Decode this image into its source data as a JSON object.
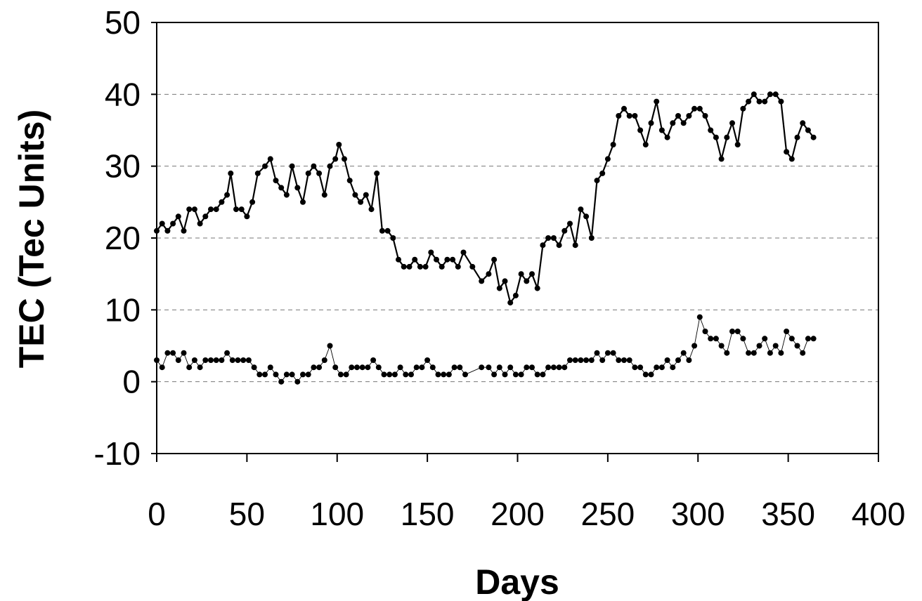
{
  "chart_data": {
    "type": "scatter",
    "xlabel": "Days",
    "ylabel": "TEC (Tec Units)",
    "xlim": [
      0,
      400
    ],
    "ylim": [
      -10,
      50
    ],
    "xticks": [
      0,
      50,
      100,
      150,
      200,
      250,
      300,
      350,
      400
    ],
    "yticks": [
      -10,
      0,
      10,
      20,
      30,
      40,
      50
    ],
    "grid": "horizontal dashed",
    "legend": "none",
    "series": [
      {
        "style": "points with thick line",
        "x": [
          0,
          3,
          6,
          9,
          12,
          15,
          18,
          21,
          24,
          27,
          30,
          33,
          36,
          39,
          41,
          44,
          47,
          50,
          53,
          56,
          60,
          63,
          66,
          69,
          72,
          75,
          78,
          81,
          84,
          87,
          90,
          93,
          96,
          99,
          101,
          104,
          107,
          110,
          113,
          116,
          119,
          122,
          125,
          128,
          131,
          134,
          137,
          140,
          143,
          146,
          149,
          152,
          155,
          158,
          161,
          164,
          167,
          170,
          175,
          180,
          184,
          187,
          190,
          193,
          196,
          199,
          202,
          205,
          208,
          211,
          214,
          217,
          220,
          223,
          226,
          229,
          232,
          235,
          238,
          241,
          244,
          247,
          250,
          253,
          256,
          259,
          262,
          265,
          268,
          271,
          274,
          277,
          280,
          283,
          286,
          289,
          292,
          295,
          298,
          301,
          304,
          307,
          310,
          313,
          316,
          319,
          322,
          325,
          328,
          331,
          334,
          337,
          340,
          343,
          346,
          349,
          352,
          355,
          358,
          361,
          364
        ],
        "y": [
          21,
          22,
          21,
          22,
          23,
          21,
          24,
          24,
          22,
          23,
          24,
          24,
          25,
          26,
          29,
          24,
          24,
          23,
          25,
          29,
          30,
          31,
          28,
          27,
          26,
          30,
          27,
          25,
          29,
          30,
          29,
          26,
          30,
          31,
          33,
          31,
          28,
          26,
          25,
          26,
          24,
          29,
          21,
          21,
          20,
          17,
          16,
          16,
          17,
          16,
          16,
          18,
          17,
          16,
          17,
          17,
          16,
          18,
          16,
          14,
          15,
          17,
          13,
          14,
          11,
          12,
          15,
          14,
          15,
          13,
          19,
          20,
          20,
          19,
          21,
          22,
          19,
          24,
          23,
          20,
          28,
          29,
          31,
          33,
          37,
          38,
          37,
          37,
          35,
          33,
          36,
          39,
          35,
          34,
          36,
          37,
          36,
          37,
          38,
          38,
          37,
          35,
          34,
          31,
          34,
          36,
          33,
          38,
          39,
          40,
          39,
          39,
          40,
          40,
          39,
          32,
          31,
          34,
          36,
          35,
          34
        ]
      },
      {
        "style": "points with thin line",
        "x": [
          0,
          3,
          6,
          9,
          12,
          15,
          18,
          21,
          24,
          27,
          30,
          33,
          36,
          39,
          42,
          45,
          48,
          51,
          54,
          57,
          60,
          63,
          66,
          69,
          72,
          75,
          78,
          81,
          84,
          87,
          90,
          93,
          96,
          99,
          102,
          105,
          108,
          111,
          114,
          117,
          120,
          123,
          126,
          129,
          132,
          135,
          138,
          141,
          144,
          147,
          150,
          153,
          156,
          159,
          162,
          165,
          168,
          171,
          180,
          184,
          187,
          190,
          193,
          196,
          199,
          202,
          205,
          208,
          211,
          214,
          217,
          220,
          223,
          226,
          229,
          232,
          235,
          238,
          241,
          244,
          247,
          250,
          253,
          256,
          259,
          262,
          265,
          268,
          271,
          274,
          277,
          280,
          283,
          286,
          289,
          292,
          295,
          298,
          301,
          304,
          307,
          310,
          313,
          316,
          319,
          322,
          325,
          328,
          331,
          334,
          337,
          340,
          343,
          346,
          349,
          352,
          355,
          358,
          361,
          364
        ],
        "y": [
          3,
          2,
          4,
          4,
          3,
          4,
          2,
          3,
          2,
          3,
          3,
          3,
          3,
          4,
          3,
          3,
          3,
          3,
          2,
          1,
          1,
          2,
          1,
          0,
          1,
          1,
          0,
          1,
          1,
          2,
          2,
          3,
          5,
          2,
          1,
          1,
          2,
          2,
          2,
          2,
          3,
          2,
          1,
          1,
          1,
          2,
          1,
          1,
          2,
          2,
          3,
          2,
          1,
          1,
          1,
          2,
          2,
          1,
          2,
          2,
          1,
          2,
          1,
          2,
          1,
          1,
          2,
          2,
          1,
          1,
          2,
          2,
          2,
          2,
          3,
          3,
          3,
          3,
          3,
          4,
          3,
          4,
          4,
          3,
          3,
          3,
          2,
          2,
          1,
          1,
          2,
          2,
          3,
          2,
          3,
          4,
          3,
          5,
          9,
          7,
          6,
          6,
          5,
          4,
          7,
          7,
          6,
          4,
          4,
          5,
          6,
          4,
          5,
          4,
          7,
          6,
          5,
          4,
          6,
          6
        ]
      }
    ]
  }
}
